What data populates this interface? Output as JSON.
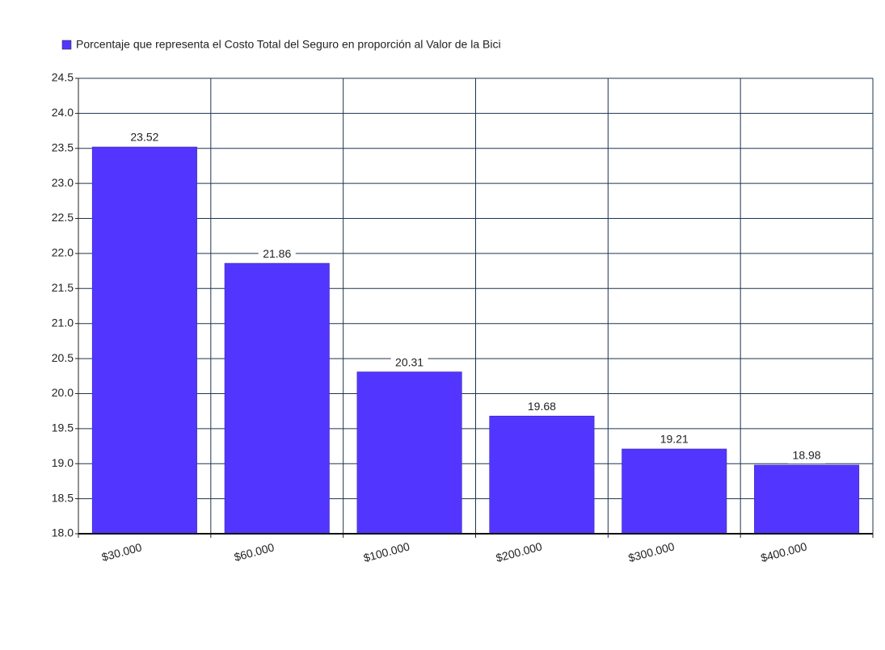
{
  "chart_data": {
    "type": "bar",
    "legend_label": "Porcentaje que representa el Costo Total del Seguro en proporción al Valor de la Bici",
    "categories": [
      "$30.000",
      "$60.000",
      "$100.000",
      "$200.000",
      "$300.000",
      "$400.000"
    ],
    "values": [
      23.52,
      21.86,
      20.31,
      19.68,
      19.21,
      18.98
    ],
    "color": "#5236ff",
    "ylim": [
      18,
      24.5
    ],
    "yticks": [
      {
        "value": 18,
        "label": "18.0"
      },
      18.5,
      {
        "value": 19,
        "label": "19.0"
      },
      19.5,
      {
        "value": 20,
        "label": "20.0"
      },
      20.5,
      {
        "value": 21,
        "label": "21.0"
      },
      21.5,
      {
        "value": 22,
        "label": "22.0"
      },
      22.5,
      {
        "value": 23,
        "label": "23.0"
      },
      23.5,
      {
        "value": 24,
        "label": "24.0"
      },
      24.5
    ],
    "grid": true
  }
}
